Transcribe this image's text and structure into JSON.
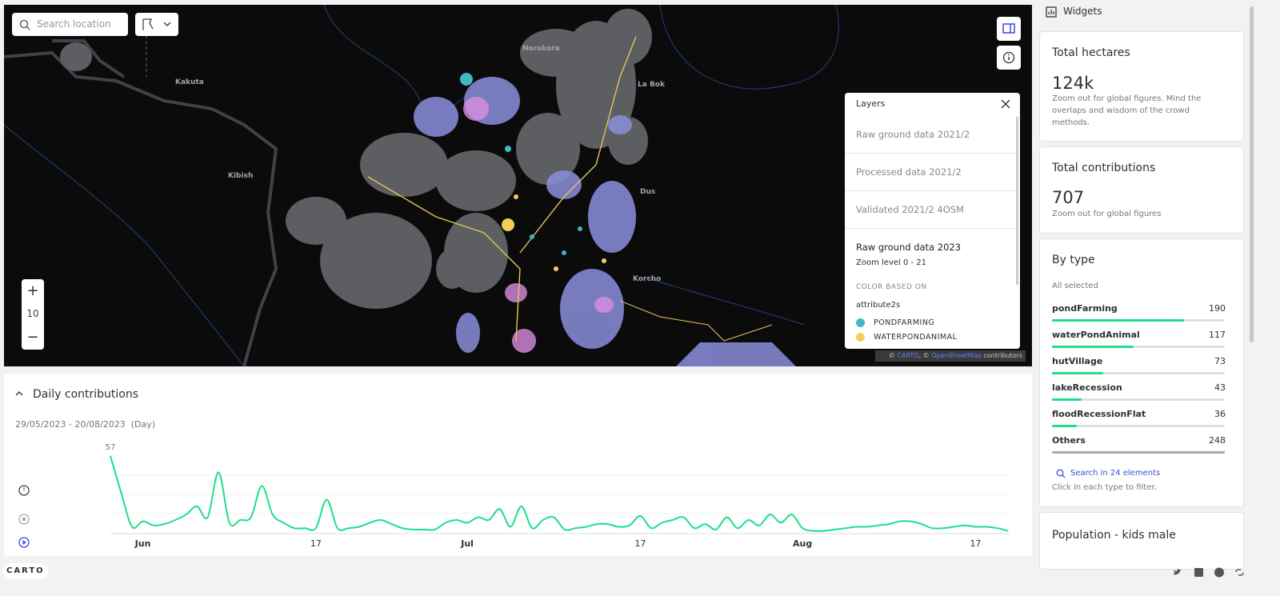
{
  "search": {
    "placeholder": "Search location"
  },
  "map": {
    "place_labels": [
      "Norokora",
      "Kakuta",
      "Kibish",
      "La Bok",
      "Dus",
      "Korcho"
    ]
  },
  "zoom": {
    "in": "+",
    "level": "10",
    "out": "−"
  },
  "attribution": {
    "carto": "CARTO",
    "osm": "OpenStreetMap",
    "suffix": "contributors"
  },
  "layers": {
    "title": "Layers",
    "items": [
      {
        "name": "Raw ground data 2021/2",
        "visible": false
      },
      {
        "name": "Processed data 2021/2",
        "visible": false
      },
      {
        "name": "Validated 2021/2 4OSM",
        "visible": false
      },
      {
        "name": "Raw ground data 2023",
        "visible": true,
        "zoom": "Zoom level 0 - 21",
        "color_heading": "COLOR BASED ON",
        "attribute": "attribute2s",
        "legend": [
          {
            "label": "PONDFARMING",
            "color": "#3fb8c4"
          },
          {
            "label": "WATERPONDANIMAL",
            "color": "#f3cf5a"
          }
        ]
      }
    ]
  },
  "daily": {
    "title": "Daily contributions",
    "range": "29/05/2023 - 20/08/2023",
    "interval": "(Day)",
    "chart_data": {
      "type": "line",
      "color": "#1ddf8a",
      "ylim": [
        0,
        57
      ],
      "categories": [
        null,
        null,
        null,
        "Jun",
        null,
        null,
        null,
        null,
        null,
        null,
        null,
        null,
        null,
        null,
        null,
        null,
        null,
        null,
        null,
        "17",
        null,
        null,
        null,
        null,
        null,
        null,
        null,
        null,
        null,
        null,
        null,
        null,
        null,
        "Jul",
        null,
        null,
        null,
        null,
        null,
        null,
        null,
        null,
        null,
        null,
        null,
        null,
        null,
        null,
        null,
        "17",
        null,
        null,
        null,
        null,
        null,
        null,
        null,
        null,
        null,
        null,
        null,
        null,
        null,
        null,
        "Aug",
        null,
        null,
        null,
        null,
        null,
        null,
        null,
        null,
        null,
        null,
        null,
        null,
        null,
        null,
        null,
        "17",
        null,
        null,
        null
      ],
      "values": [
        57,
        30,
        5,
        9,
        6,
        7,
        10,
        14,
        20,
        12,
        45,
        8,
        10,
        12,
        35,
        14,
        8,
        4,
        4,
        4,
        25,
        4,
        4,
        5,
        8,
        10,
        7,
        4,
        3,
        3,
        3,
        8,
        10,
        8,
        12,
        10,
        18,
        5,
        20,
        4,
        10,
        12,
        3,
        4,
        5,
        7,
        7,
        5,
        6,
        13,
        4,
        8,
        10,
        12,
        4,
        7,
        3,
        12,
        4,
        10,
        6,
        14,
        8,
        14,
        4,
        2,
        2,
        3,
        4,
        5,
        5,
        6,
        7,
        9,
        9,
        7,
        4,
        4,
        5,
        6,
        5,
        5,
        4,
        2
      ]
    }
  },
  "widgets": {
    "title": "Widgets",
    "total_hectares": {
      "title": "Total hectares",
      "value": "124k",
      "note": "Zoom out for global figures. Mind the overlaps and wisdom of the crowd methods."
    },
    "total_contributions": {
      "title": "Total contributions",
      "value": "707",
      "note": "Zoom out for global figures"
    },
    "by_type": {
      "title": "By type",
      "status": "All selected",
      "bar_color": "#1ddf8a",
      "others_color": "#a8a8a8",
      "items": [
        {
          "name": "pondFarming",
          "value": 190
        },
        {
          "name": "waterPondAnimal",
          "value": 117
        },
        {
          "name": "hutVillage",
          "value": 73
        },
        {
          "name": "lakeRecession",
          "value": 43
        },
        {
          "name": "floodRecessionFlat",
          "value": 36
        }
      ],
      "others": {
        "name": "Others",
        "value": 248
      },
      "search": "Search in 24 elements",
      "hint": "Click in each type to filter."
    },
    "population": {
      "title": "Population - kids male"
    }
  },
  "footer": {
    "logo": "CARTO"
  }
}
